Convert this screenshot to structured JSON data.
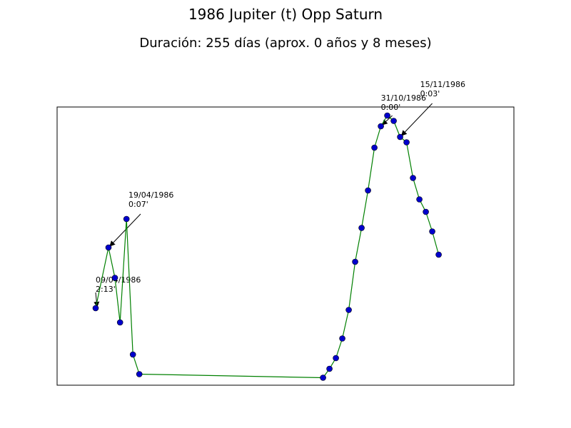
{
  "chart_data": {
    "type": "line",
    "title": "1986 Jupiter (t) Opp Saturn",
    "subtitle": "Duración: 255 días (aprox. 0 años y 8 meses)",
    "xlabel": "",
    "ylabel": "",
    "grid": false,
    "line_color": "#008000",
    "marker_color": "#0000cc",
    "x": [
      -10,
      0,
      5,
      9,
      14,
      19,
      24,
      167,
      172,
      177,
      182,
      187,
      192,
      197,
      202,
      207,
      212,
      217,
      222,
      227,
      232,
      237,
      242,
      247,
      252,
      257
    ],
    "y": [
      30,
      64,
      47,
      22,
      80,
      4,
      -7,
      -9,
      -4,
      2,
      13,
      29,
      56,
      75,
      96,
      120,
      132,
      138,
      135,
      126,
      123,
      103,
      91,
      84,
      73,
      60
    ],
    "annotations": [
      {
        "index": 0,
        "date": "09/04/1986",
        "value": "2:13'"
      },
      {
        "index": 1,
        "date": "19/04/1986",
        "value": "0:07'"
      },
      {
        "index": 16,
        "date": "31/10/1986",
        "value": "0:00'"
      },
      {
        "index": 19,
        "date": "15/11/1986",
        "value": "0:03'"
      }
    ]
  }
}
